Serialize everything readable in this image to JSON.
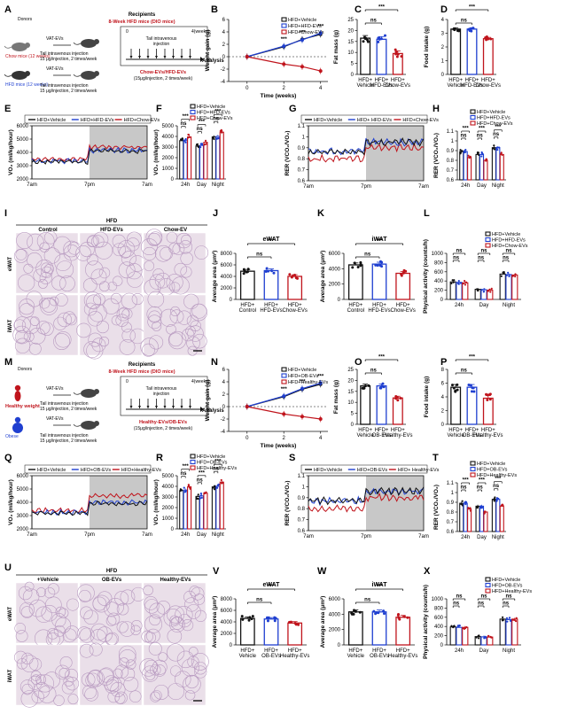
{
  "colors": {
    "black": "#111111",
    "blue": "#1f3fd0",
    "red": "#c0141c",
    "gray": "#c8c8c8"
  },
  "panel_letters": [
    "A",
    "B",
    "C",
    "D",
    "E",
    "F",
    "G",
    "H",
    "I",
    "J",
    "K",
    "L",
    "M",
    "N",
    "O",
    "P",
    "Q",
    "R",
    "S",
    "T",
    "U",
    "V",
    "W",
    "X"
  ],
  "sig": {
    "ns": "ns",
    "p3": "***"
  },
  "schematics": [
    {
      "donor_title": "Donors",
      "recipient_title": "Recipients",
      "recipient_sub": "8-Week HFD mice (DIO mice)",
      "donor_a": "Chow mice (12 weeks)",
      "donor_b": "HFD mice (12 weeks)",
      "vat": "VAT-EVs",
      "inj1": "Tail intravenous injection",
      "inj2": "15 μg/injection, 2 times/week",
      "week0": "0",
      "week4": "4(weeks)",
      "tail": "Tail intravenous",
      "tail2": "injection",
      "analysis": "Analysis",
      "ev_group": "Chow-EVs/HFD-EVs",
      "ev_dose": "(15μg/injection, 2 times/week)"
    },
    {
      "donor_title": "Donors",
      "recipient_title": "Recipients",
      "recipient_sub": "8-Week HFD mice (DIO mice)",
      "donor_a": "Healthy weight",
      "donor_b": "Obese",
      "vat": "VAT-EVs",
      "inj1": "Tail intravenous injection",
      "inj2": "15 μg/injection, 2 times/week",
      "week0": "0",
      "week4": "4(weeks)",
      "tail": "Tail intravenous",
      "tail2": "injection",
      "analysis": "Analysis",
      "ev_group": "Healthy-EVs/OB-EVs",
      "ev_dose": "(15μg/injection, 2 times/week)"
    }
  ],
  "histology": [
    {
      "title": "HFD",
      "cols": [
        "Control",
        "HFD-EVs",
        "Chow-EV"
      ],
      "rows": [
        "eWAT",
        "iWAT"
      ]
    },
    {
      "title": "HFD",
      "cols": [
        "+Vehicle",
        "OB-EVs",
        "Healthy-EVs"
      ],
      "rows": [
        "eWAT",
        "iWAT"
      ]
    }
  ],
  "time_axis": [
    "7am",
    "7pm",
    "7am"
  ],
  "chart_data": [
    {
      "id": "B",
      "type": "line",
      "ylabel": "Weight gain (g)",
      "xlabel": "Time (weeks)",
      "xlim": [
        -1,
        4.4
      ],
      "ylim": [
        -4,
        6
      ],
      "xticks": [
        0,
        2,
        4
      ],
      "yticks": [
        -4,
        -2,
        0,
        2,
        4,
        6
      ],
      "legend": [
        "HFD+Vehicle",
        "HFD+HFD-EVs",
        "HFD+Chow-EVs"
      ],
      "series": [
        {
          "name": "HFD+Vehicle",
          "x": [
            0,
            2,
            3,
            4
          ],
          "y": [
            0,
            1.6,
            2.8,
            3.6
          ],
          "err": 0.5
        },
        {
          "name": "HFD+HFD-EVs",
          "x": [
            0,
            2,
            3,
            4
          ],
          "y": [
            0,
            1.7,
            2.7,
            3.8
          ],
          "err": 0.5
        },
        {
          "name": "HFD+Chow-EVs",
          "x": [
            0,
            2,
            3,
            4
          ],
          "y": [
            0,
            -1.2,
            -1.6,
            -2.3
          ],
          "err": 0.5
        }
      ],
      "sig": [
        {
          "x": 2,
          "t": "***"
        },
        {
          "x": 3,
          "t": "***"
        },
        {
          "x": 4,
          "t": "***"
        }
      ]
    },
    {
      "id": "C",
      "type": "bar",
      "ylabel": "Fat mass (g)",
      "ylim": [
        0,
        25
      ],
      "yticks": [
        0,
        5,
        10,
        15,
        20,
        25
      ],
      "categories": [
        [
          "HFD+",
          "Vehicle"
        ],
        [
          "HFD+",
          "HFD-EVs"
        ],
        [
          "HFD+",
          "Chow-EVs"
        ]
      ],
      "values": [
        16.5,
        16,
        9.5
      ],
      "err": 1.2,
      "brackets": [
        {
          "a": 0,
          "b": 1,
          "t": "ns"
        },
        {
          "a": 0,
          "b": 2,
          "t": "***"
        }
      ]
    },
    {
      "id": "D",
      "type": "bar",
      "ylabel": "Food intake (g)",
      "ylim": [
        0,
        4
      ],
      "yticks": [
        0,
        1,
        2,
        3,
        4
      ],
      "categories": [
        [
          "HFD+",
          "Vehicle"
        ],
        [
          "HFD+",
          "HFD-EVs"
        ],
        [
          "HFD+",
          "Chow-EVs"
        ]
      ],
      "values": [
        3.3,
        3.3,
        2.6
      ],
      "err": 0.1,
      "brackets": [
        {
          "a": 0,
          "b": 1,
          "t": "ns"
        },
        {
          "a": 0,
          "b": 2,
          "t": "***"
        }
      ]
    },
    {
      "id": "E",
      "type": "line",
      "ylabel": "VO₂ (ml/kg/hour)",
      "ylim": [
        2000,
        6000
      ],
      "yticks": [
        2000,
        3000,
        4000,
        5000,
        6000
      ],
      "legend": [
        "HFD+Vehicle",
        "HFD+HFD-EVs",
        "HFD+Chow-EVs"
      ],
      "series": [
        {
          "name": "HFD+Vehicle",
          "day": 3300,
          "night": 4100
        },
        {
          "name": "HFD+HFD-EVs",
          "day": 3350,
          "night": 4150
        },
        {
          "name": "HFD+Chow-EVs",
          "day": 3500,
          "night": 4400
        }
      ]
    },
    {
      "id": "F",
      "type": "bar",
      "ylabel": "VO₂ (ml/kg/hour)",
      "ylim": [
        0,
        5000
      ],
      "yticks": [
        0,
        1000,
        2000,
        3000,
        4000,
        5000
      ],
      "categories": [
        "24h",
        "Day",
        "Night"
      ],
      "legend": [
        "HFD+Vehicle",
        "HFD+HFD-EVs",
        "HFD+Chow-EVs"
      ],
      "series": [
        {
          "name": "HFD+Vehicle",
          "values": [
            3600,
            3100,
            3950
          ]
        },
        {
          "name": "HFD+HFD-EVs",
          "values": [
            3650,
            3150,
            4000
          ]
        },
        {
          "name": "HFD+Chow-EVs",
          "values": [
            3950,
            3450,
            4400
          ]
        }
      ]
    },
    {
      "id": "G",
      "type": "line",
      "ylabel": "RER (VCO₂/VO₂)",
      "ylim": [
        0.6,
        1.1
      ],
      "yticks": [
        0.6,
        0.7,
        0.8,
        0.9,
        1.0,
        1.1
      ],
      "legend": [
        "HFD+Vehicle",
        "HFD+ HFD-EVs",
        "HFD+Chow-EVs"
      ],
      "series": [
        {
          "name": "HFD+Vehicle",
          "day": 0.86,
          "night": 0.95
        },
        {
          "name": "HFD+ HFD-EVs",
          "day": 0.87,
          "night": 0.95
        },
        {
          "name": "HFD+Chow-EVs",
          "day": 0.8,
          "night": 0.9
        }
      ]
    },
    {
      "id": "H",
      "type": "bar",
      "ylabel": "RER (VCO₂/VO₂)",
      "ylim": [
        0.6,
        1.1
      ],
      "yticks": [
        0.6,
        0.7,
        0.8,
        0.9,
        1.0,
        1.1
      ],
      "categories": [
        "24h",
        "Day",
        "Night"
      ],
      "legend": [
        "HFD+Vehicle",
        "HFD+HFD-EVs",
        "HFD+Chow-EVs"
      ],
      "series": [
        {
          "name": "HFD+Vehicle",
          "values": [
            0.89,
            0.86,
            0.93
          ]
        },
        {
          "name": "HFD+HFD-EVs",
          "values": [
            0.89,
            0.86,
            0.93
          ]
        },
        {
          "name": "HFD+Chow-EVs",
          "values": [
            0.83,
            0.8,
            0.86
          ]
        }
      ]
    },
    {
      "id": "J",
      "type": "bar",
      "title": "eWAT",
      "ylabel": "Average area (μm²)",
      "ylim": [
        0,
        8000
      ],
      "yticks": [
        0,
        2000,
        4000,
        6000,
        8000
      ],
      "categories": [
        [
          "HFD+",
          "Control"
        ],
        [
          "HFD+",
          "HFD-EVs"
        ],
        [
          "HFD+",
          "Chow-EVs"
        ]
      ],
      "values": [
        4900,
        5000,
        4000
      ],
      "err": 300,
      "brackets": [
        {
          "a": 0,
          "b": 1,
          "t": "ns"
        },
        {
          "a": 0,
          "b": 2,
          "t": "***"
        }
      ]
    },
    {
      "id": "K",
      "type": "bar",
      "title": "iWAT",
      "ylabel": "Average area (μm²)",
      "ylim": [
        0,
        6000
      ],
      "yticks": [
        0,
        2000,
        4000,
        6000
      ],
      "categories": [
        [
          "HFD+",
          "Control"
        ],
        [
          "HFD+",
          "HFD-EVs"
        ],
        [
          "HFD+",
          "Chow-EVs"
        ]
      ],
      "values": [
        4500,
        4600,
        3400
      ],
      "err": 250,
      "brackets": [
        {
          "a": 0,
          "b": 1,
          "t": "ns"
        },
        {
          "a": 0,
          "b": 2,
          "t": "***"
        }
      ]
    },
    {
      "id": "L",
      "type": "bar",
      "ylabel": "Physical activity (counts/h)",
      "ylim": [
        0,
        1000
      ],
      "yticks": [
        0,
        200,
        400,
        600,
        800,
        1000
      ],
      "categories": [
        "24h",
        "Day",
        "Night"
      ],
      "legend": [
        "HFD+Vehicle",
        "HFD+HFD-EVs",
        "HFD+Chow-EVs"
      ],
      "series": [
        {
          "name": "HFD+Vehicle",
          "values": [
            380,
            220,
            550
          ]
        },
        {
          "name": "HFD+HFD-EVs",
          "values": [
            370,
            210,
            540
          ]
        },
        {
          "name": "HFD+Chow-EVs",
          "values": [
            360,
            200,
            530
          ]
        }
      ]
    },
    {
      "id": "N",
      "type": "line",
      "ylabel": "Weight gain (g)",
      "xlabel": "Time (weeks)",
      "xlim": [
        -1,
        4.4
      ],
      "ylim": [
        -4,
        6
      ],
      "xticks": [
        0,
        2,
        4
      ],
      "yticks": [
        -4,
        -2,
        0,
        2,
        4,
        6
      ],
      "legend": [
        "HFD+Vehicle",
        "HFD+OB-EVs",
        "HFD+Healthy-EVs"
      ],
      "series": [
        {
          "name": "HFD+Vehicle",
          "x": [
            0,
            2,
            3,
            4
          ],
          "y": [
            0,
            1.6,
            2.8,
            3.6
          ],
          "err": 0.5
        },
        {
          "name": "HFD+OB-EVs",
          "x": [
            0,
            2,
            3,
            4
          ],
          "y": [
            0,
            1.7,
            2.9,
            3.8
          ],
          "err": 0.5
        },
        {
          "name": "HFD+Healthy-EVs",
          "x": [
            0,
            2,
            3,
            4
          ],
          "y": [
            0,
            -1.2,
            -1.6,
            -2.0
          ],
          "err": 0.5
        }
      ],
      "sig": [
        {
          "x": 2,
          "t": "***"
        },
        {
          "x": 3,
          "t": "***"
        },
        {
          "x": 4,
          "t": "***"
        }
      ]
    },
    {
      "id": "O",
      "type": "bar",
      "ylabel": "Fat mass (g)",
      "ylim": [
        0,
        25
      ],
      "yticks": [
        0,
        5,
        10,
        15,
        20,
        25
      ],
      "categories": [
        [
          "HFD+",
          "Vehicle"
        ],
        [
          "HFD+",
          "OB-EVs"
        ],
        [
          "HFD+",
          "Healthy-EVs"
        ]
      ],
      "values": [
        17.5,
        17.5,
        12
      ],
      "err": 0.8,
      "brackets": [
        {
          "a": 0,
          "b": 1,
          "t": "ns"
        },
        {
          "a": 0,
          "b": 2,
          "t": "***"
        }
      ]
    },
    {
      "id": "P",
      "type": "bar",
      "ylabel": "Food intake (g)",
      "ylim": [
        0,
        8
      ],
      "yticks": [
        0,
        2,
        4,
        6,
        8
      ],
      "categories": [
        [
          "HFD+",
          "Vehicle"
        ],
        [
          "HFD+",
          "OB-EVs"
        ],
        [
          "HFD+",
          "Healthy-EVs"
        ]
      ],
      "values": [
        5.4,
        5.4,
        3.8
      ],
      "err": 0.4,
      "brackets": [
        {
          "a": 0,
          "b": 1,
          "t": "ns"
        },
        {
          "a": 0,
          "b": 2,
          "t": "***"
        }
      ]
    },
    {
      "id": "Q",
      "type": "line",
      "ylabel": "VO₂ (ml/kg/hour)",
      "ylim": [
        2000,
        6000
      ],
      "yticks": [
        2000,
        3000,
        4000,
        5000,
        6000
      ],
      "legend": [
        "HFD+Vehicle",
        "HFD+OB-EVs",
        "HFD+Healthy-EVs"
      ],
      "series": [
        {
          "name": "HFD+Vehicle",
          "day": 3200,
          "night": 3900
        },
        {
          "name": "HFD+OB-EVs",
          "day": 3250,
          "night": 4000
        },
        {
          "name": "HFD+Healthy-EVs",
          "day": 3400,
          "night": 4500
        }
      ]
    },
    {
      "id": "R",
      "type": "bar",
      "ylabel": "VO₂ (ml/kg/hour)",
      "ylim": [
        0,
        5000
      ],
      "yticks": [
        0,
        1000,
        2000,
        3000,
        4000,
        5000
      ],
      "categories": [
        "24h",
        "Day",
        "Night"
      ],
      "legend": [
        "HFD+Vehicle",
        "HFD+OB-EVs",
        "HFD+Healthy-EVs"
      ],
      "series": [
        {
          "name": "HFD+Vehicle",
          "values": [
            3600,
            3050,
            3950
          ]
        },
        {
          "name": "HFD+OB-EVs",
          "values": [
            3650,
            3100,
            4000
          ]
        },
        {
          "name": "HFD+Healthy-EVs",
          "values": [
            3950,
            3350,
            4400
          ]
        }
      ]
    },
    {
      "id": "S",
      "type": "line",
      "ylabel": "RER (VCO₂/VO₂)",
      "ylim": [
        0.6,
        1.1
      ],
      "yticks": [
        0.6,
        0.7,
        0.8,
        0.9,
        1.0,
        1.1
      ],
      "legend": [
        "HFD+Vehicle",
        "HFD+OB-EVs",
        "HFD+ Healthy-EVs"
      ],
      "series": [
        {
          "name": "HFD+Vehicle",
          "day": 0.87,
          "night": 0.96
        },
        {
          "name": "HFD+OB-EVs",
          "day": 0.87,
          "night": 0.96
        },
        {
          "name": "HFD+ Healthy-EVs",
          "day": 0.8,
          "night": 0.9
        }
      ]
    },
    {
      "id": "T",
      "type": "bar",
      "ylabel": "RER (VCO₂/VO₂)",
      "ylim": [
        0.6,
        1.1
      ],
      "yticks": [
        0.6,
        0.7,
        0.8,
        0.9,
        1.0,
        1.1
      ],
      "categories": [
        "24h",
        "Day",
        "Night"
      ],
      "legend": [
        "HFD+Vehicle",
        "HFD+OB-EVs",
        "HFD+Healthy-EVs"
      ],
      "series": [
        {
          "name": "HFD+Vehicle",
          "values": [
            0.89,
            0.86,
            0.93
          ]
        },
        {
          "name": "HFD+OB-EVs",
          "values": [
            0.89,
            0.86,
            0.93
          ]
        },
        {
          "name": "HFD+Healthy-EVs",
          "values": [
            0.83,
            0.8,
            0.86
          ]
        }
      ]
    },
    {
      "id": "V",
      "type": "bar",
      "title": "eWAT",
      "ylabel": "Average area (μm²)",
      "ylim": [
        0,
        8000
      ],
      "yticks": [
        0,
        2000,
        4000,
        6000,
        8000
      ],
      "categories": [
        [
          "HFD+",
          "Vehicle"
        ],
        [
          "HFD+",
          "OB-EVs"
        ],
        [
          "HFD+",
          "Healthy-EVs"
        ]
      ],
      "values": [
        4600,
        4500,
        3800
      ],
      "err": 250,
      "brackets": [
        {
          "a": 0,
          "b": 1,
          "t": "ns"
        },
        {
          "a": 0,
          "b": 2,
          "t": "***"
        }
      ]
    },
    {
      "id": "W",
      "type": "bar",
      "title": "iWAT",
      "ylabel": "Average area (μm²)",
      "ylim": [
        0,
        6000
      ],
      "yticks": [
        0,
        2000,
        4000,
        6000
      ],
      "categories": [
        [
          "HFD+",
          "Vehicle"
        ],
        [
          "HFD+",
          "OB-EVs"
        ],
        [
          "HFD+",
          "Healthy-EVs"
        ]
      ],
      "values": [
        4300,
        4300,
        3600
      ],
      "err": 250,
      "brackets": [
        {
          "a": 0,
          "b": 1,
          "t": "ns"
        },
        {
          "a": 0,
          "b": 2,
          "t": "***"
        }
      ]
    },
    {
      "id": "X",
      "type": "bar",
      "ylabel": "Physical activity (counts/h)",
      "ylim": [
        0,
        1000
      ],
      "yticks": [
        0,
        200,
        400,
        600,
        800,
        1000
      ],
      "categories": [
        "24h",
        "Day",
        "Night"
      ],
      "legend": [
        "HFD+Vehicle",
        "HFD+OB-EVs",
        "HFD+Healthy-EVs"
      ],
      "series": [
        {
          "name": "HFD+Vehicle",
          "values": [
            390,
            180,
            560
          ]
        },
        {
          "name": "HFD+OB-EVs",
          "values": [
            380,
            175,
            550
          ]
        },
        {
          "name": "HFD+Healthy-EVs",
          "values": [
            380,
            170,
            560
          ]
        }
      ]
    }
  ]
}
